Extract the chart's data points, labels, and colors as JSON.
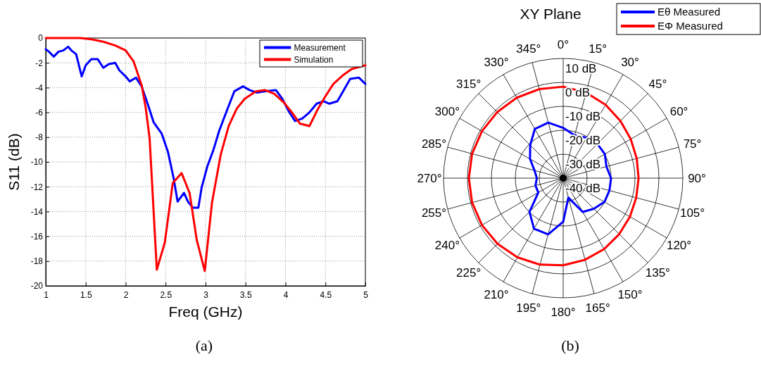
{
  "chart_data": [
    {
      "type": "line",
      "xlabel": "Freq (GHz)",
      "ylabel": "S11 (dB)",
      "xlim": [
        1,
        5
      ],
      "ylim": [
        -20,
        0
      ],
      "xticks": [
        1,
        1.5,
        2,
        2.5,
        3,
        3.5,
        4,
        4.5,
        5
      ],
      "yticks": [
        -20,
        -18,
        -16,
        -14,
        -12,
        -10,
        -8,
        -6,
        -4,
        -2,
        0
      ],
      "grid": true,
      "legend": "top right",
      "annotations": [
        "(a)"
      ],
      "series": [
        {
          "name": "Measurement",
          "color": "#0000ff",
          "x": [
            1.0,
            1.04,
            1.1,
            1.16,
            1.22,
            1.28,
            1.32,
            1.38,
            1.45,
            1.5,
            1.57,
            1.65,
            1.72,
            1.79,
            1.87,
            1.92,
            2.0,
            2.05,
            2.13,
            2.2,
            2.28,
            2.35,
            2.45,
            2.53,
            2.6,
            2.65,
            2.73,
            2.78,
            2.84,
            2.91,
            2.95,
            3.02,
            3.1,
            3.17,
            3.27,
            3.36,
            3.47,
            3.55,
            3.64,
            3.74,
            3.88,
            3.96,
            4.04,
            4.12,
            4.21,
            4.3,
            4.39,
            4.48,
            4.55,
            4.65,
            4.73,
            4.81,
            4.92,
            5.0
          ],
          "values": [
            -0.9,
            -1.1,
            -1.5,
            -1.1,
            -1.0,
            -0.7,
            -1.0,
            -1.3,
            -3.1,
            -2.2,
            -1.7,
            -1.7,
            -2.4,
            -2.1,
            -2.0,
            -2.6,
            -3.1,
            -3.5,
            -3.2,
            -3.9,
            -5.4,
            -6.8,
            -7.7,
            -9.2,
            -11.3,
            -13.2,
            -12.5,
            -13.2,
            -13.7,
            -13.7,
            -12.1,
            -10.4,
            -9.0,
            -7.5,
            -5.8,
            -4.3,
            -3.9,
            -4.2,
            -4.4,
            -4.3,
            -4.2,
            -4.9,
            -5.9,
            -6.7,
            -6.5,
            -6.0,
            -5.3,
            -5.1,
            -5.3,
            -5.1,
            -4.2,
            -3.3,
            -3.2,
            -3.7
          ]
        },
        {
          "name": "Simulation",
          "color": "#ff0000",
          "x": [
            1.0,
            1.43,
            1.57,
            1.72,
            1.87,
            2.0,
            2.1,
            2.2,
            2.25,
            2.3,
            2.39,
            2.49,
            2.59,
            2.7,
            2.8,
            2.89,
            2.99,
            3.08,
            3.19,
            3.29,
            3.39,
            3.49,
            3.63,
            3.74,
            3.86,
            3.98,
            4.08,
            4.18,
            4.3,
            4.4,
            4.5,
            4.6,
            4.72,
            4.83,
            5.0
          ],
          "values": [
            0,
            0,
            -0.1,
            -0.3,
            -0.6,
            -1.0,
            -1.9,
            -3.8,
            -5.6,
            -8.1,
            -18.7,
            -16.5,
            -11.7,
            -10.9,
            -12.5,
            -16.3,
            -18.8,
            -13.3,
            -9.4,
            -7.1,
            -5.7,
            -4.9,
            -4.3,
            -4.2,
            -4.5,
            -5.2,
            -6.0,
            -6.9,
            -7.1,
            -5.8,
            -4.7,
            -3.7,
            -3.0,
            -2.5,
            -2.2
          ]
        }
      ]
    },
    {
      "type": "radar",
      "title": "XY Plane",
      "legend": "top right",
      "annotations": [
        "(b)"
      ],
      "ylim": [
        -40,
        10
      ],
      "yticks": [
        {
          "value": -40,
          "label": "-40 dB"
        },
        {
          "value": -30,
          "label": "-30 dB"
        },
        {
          "value": -20,
          "label": "-20 dB"
        },
        {
          "value": -10,
          "label": "-10 dB"
        },
        {
          "value": 0,
          "label": "0 dB"
        },
        {
          "value": 10,
          "label": "10 dB"
        }
      ],
      "categories": [
        "0°",
        "15°",
        "30°",
        "45°",
        "60°",
        "75°",
        "90°",
        "105°",
        "120°",
        "135°",
        "150°",
        "165°",
        "180°",
        "195°",
        "210°",
        "225°",
        "240°",
        "255°",
        "270°",
        "285°",
        "300°",
        "315°",
        "330°",
        "345°"
      ],
      "series": [
        {
          "name": "Eθ Measured",
          "color": "#0000ff",
          "values": [
            -19,
            -21.5,
            -20.5,
            -19.8,
            -19.9,
            -21.3,
            -20,
            -20,
            -20.1,
            -21.9,
            -23.7,
            -31.6,
            -21.8,
            -15.7,
            -15.6,
            -20.1,
            -28,
            -28,
            -29,
            -27.6,
            -24,
            -20.5,
            -16.3,
            -16
          ]
        },
        {
          "name": "EΦ Measured",
          "color": "#ff0000",
          "values": [
            -1.8,
            -3.0,
            -4.6,
            -6.2,
            -7.4,
            -8.2,
            -8.5,
            -8.4,
            -7.8,
            -6.9,
            -5.8,
            -4.7,
            -3.6,
            -2.6,
            -1.8,
            -1.2,
            -0.8,
            -0.6,
            -0.6,
            -0.6,
            -0.8,
            -1.0,
            -1.2,
            -1.5
          ]
        }
      ]
    }
  ]
}
